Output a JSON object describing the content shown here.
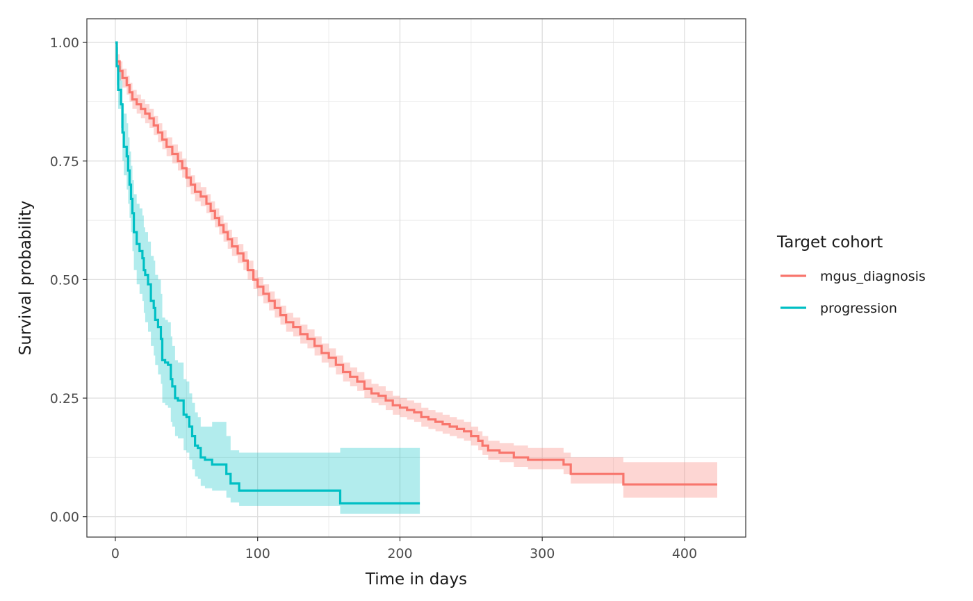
{
  "chart_data": {
    "type": "line",
    "subtype": "kaplan-meier survival curve with confidence bands",
    "xlabel": "Time in days",
    "ylabel": "Survival probability",
    "xlim": [
      -20,
      443
    ],
    "ylim": [
      -0.043,
      1.05
    ],
    "x_ticks": [
      0,
      100,
      200,
      300,
      400
    ],
    "x_tick_labels": [
      "0",
      "100",
      "200",
      "300",
      "400"
    ],
    "y_ticks": [
      0,
      0.25,
      0.5,
      0.75,
      1.0
    ],
    "y_tick_labels": [
      "0.00",
      "0.25",
      "0.50",
      "0.75",
      "1.00"
    ],
    "grid": true,
    "legend": {
      "title": "Target cohort",
      "placement": "right"
    },
    "series": [
      {
        "name": "mgus_diagnosis",
        "color": "#F8766D",
        "band_color": "#F8766D",
        "points": [
          [
            0,
            1.0
          ],
          [
            1,
            0.96
          ],
          [
            3,
            0.94
          ],
          [
            5,
            0.925
          ],
          [
            8,
            0.91
          ],
          [
            10,
            0.895
          ],
          [
            12,
            0.88
          ],
          [
            15,
            0.87
          ],
          [
            18,
            0.86
          ],
          [
            21,
            0.85
          ],
          [
            24,
            0.84
          ],
          [
            27,
            0.825
          ],
          [
            30,
            0.81
          ],
          [
            33,
            0.795
          ],
          [
            36,
            0.78
          ],
          [
            40,
            0.765
          ],
          [
            44,
            0.75
          ],
          [
            47,
            0.735
          ],
          [
            50,
            0.715
          ],
          [
            53,
            0.7
          ],
          [
            56,
            0.685
          ],
          [
            60,
            0.675
          ],
          [
            64,
            0.66
          ],
          [
            67,
            0.645
          ],
          [
            70,
            0.63
          ],
          [
            73,
            0.615
          ],
          [
            76,
            0.6
          ],
          [
            79,
            0.585
          ],
          [
            82,
            0.57
          ],
          [
            86,
            0.555
          ],
          [
            90,
            0.54
          ],
          [
            93,
            0.52
          ],
          [
            97,
            0.5
          ],
          [
            100,
            0.485
          ],
          [
            104,
            0.47
          ],
          [
            108,
            0.455
          ],
          [
            112,
            0.44
          ],
          [
            116,
            0.425
          ],
          [
            120,
            0.41
          ],
          [
            125,
            0.4
          ],
          [
            130,
            0.385
          ],
          [
            135,
            0.375
          ],
          [
            140,
            0.36
          ],
          [
            145,
            0.345
          ],
          [
            150,
            0.335
          ],
          [
            155,
            0.32
          ],
          [
            160,
            0.305
          ],
          [
            165,
            0.295
          ],
          [
            170,
            0.285
          ],
          [
            175,
            0.27
          ],
          [
            180,
            0.26
          ],
          [
            185,
            0.255
          ],
          [
            190,
            0.245
          ],
          [
            195,
            0.235
          ],
          [
            200,
            0.23
          ],
          [
            205,
            0.225
          ],
          [
            210,
            0.22
          ],
          [
            215,
            0.21
          ],
          [
            220,
            0.205
          ],
          [
            225,
            0.2
          ],
          [
            230,
            0.195
          ],
          [
            235,
            0.19
          ],
          [
            240,
            0.185
          ],
          [
            245,
            0.18
          ],
          [
            250,
            0.17
          ],
          [
            255,
            0.16
          ],
          [
            258,
            0.15
          ],
          [
            262,
            0.14
          ],
          [
            270,
            0.135
          ],
          [
            280,
            0.125
          ],
          [
            290,
            0.12
          ],
          [
            300,
            0.12
          ],
          [
            313,
            0.12
          ],
          [
            315,
            0.11
          ],
          [
            320,
            0.09
          ],
          [
            330,
            0.09
          ],
          [
            345,
            0.09
          ],
          [
            355,
            0.09
          ],
          [
            357,
            0.068
          ],
          [
            380,
            0.068
          ],
          [
            400,
            0.068
          ],
          [
            423,
            0.068
          ]
        ],
        "lower": [
          1.0,
          0.94,
          0.92,
          0.905,
          0.89,
          0.875,
          0.86,
          0.85,
          0.84,
          0.83,
          0.82,
          0.805,
          0.79,
          0.775,
          0.76,
          0.745,
          0.73,
          0.715,
          0.695,
          0.68,
          0.665,
          0.655,
          0.64,
          0.625,
          0.61,
          0.595,
          0.58,
          0.565,
          0.55,
          0.535,
          0.52,
          0.5,
          0.48,
          0.465,
          0.45,
          0.435,
          0.42,
          0.405,
          0.39,
          0.38,
          0.365,
          0.355,
          0.34,
          0.325,
          0.315,
          0.3,
          0.285,
          0.275,
          0.265,
          0.25,
          0.24,
          0.235,
          0.225,
          0.215,
          0.21,
          0.205,
          0.2,
          0.19,
          0.185,
          0.18,
          0.175,
          0.17,
          0.165,
          0.16,
          0.15,
          0.14,
          0.13,
          0.12,
          0.115,
          0.105,
          0.1,
          0.1,
          0.1,
          0.09,
          0.07,
          0.07,
          0.07,
          0.07,
          0.04,
          0.04,
          0.04,
          0.04
        ],
        "upper": [
          1.0,
          0.975,
          0.96,
          0.945,
          0.93,
          0.915,
          0.9,
          0.89,
          0.88,
          0.87,
          0.86,
          0.845,
          0.83,
          0.815,
          0.8,
          0.785,
          0.77,
          0.755,
          0.735,
          0.72,
          0.705,
          0.695,
          0.68,
          0.665,
          0.65,
          0.635,
          0.62,
          0.605,
          0.59,
          0.575,
          0.56,
          0.54,
          0.52,
          0.505,
          0.49,
          0.475,
          0.46,
          0.445,
          0.43,
          0.42,
          0.405,
          0.395,
          0.38,
          0.365,
          0.355,
          0.34,
          0.325,
          0.315,
          0.305,
          0.29,
          0.28,
          0.275,
          0.265,
          0.255,
          0.25,
          0.245,
          0.24,
          0.23,
          0.225,
          0.22,
          0.215,
          0.21,
          0.205,
          0.2,
          0.19,
          0.18,
          0.17,
          0.16,
          0.155,
          0.15,
          0.145,
          0.145,
          0.145,
          0.135,
          0.125,
          0.125,
          0.125,
          0.125,
          0.115,
          0.115,
          0.115,
          0.115
        ]
      },
      {
        "name": "progression",
        "color": "#00BFC4",
        "band_color": "#00BFC4",
        "points": [
          [
            0,
            1.0
          ],
          [
            1,
            0.95
          ],
          [
            2,
            0.9
          ],
          [
            4,
            0.87
          ],
          [
            5,
            0.81
          ],
          [
            6,
            0.78
          ],
          [
            8,
            0.76
          ],
          [
            9,
            0.73
          ],
          [
            10,
            0.7
          ],
          [
            11,
            0.67
          ],
          [
            12,
            0.64
          ],
          [
            13,
            0.6
          ],
          [
            15,
            0.575
          ],
          [
            17,
            0.56
          ],
          [
            19,
            0.545
          ],
          [
            20,
            0.52
          ],
          [
            21,
            0.51
          ],
          [
            23,
            0.49
          ],
          [
            25,
            0.455
          ],
          [
            27,
            0.44
          ],
          [
            28,
            0.415
          ],
          [
            30,
            0.4
          ],
          [
            32,
            0.375
          ],
          [
            33,
            0.33
          ],
          [
            35,
            0.325
          ],
          [
            37,
            0.32
          ],
          [
            39,
            0.29
          ],
          [
            40,
            0.275
          ],
          [
            42,
            0.25
          ],
          [
            44,
            0.245
          ],
          [
            47,
            0.245
          ],
          [
            48,
            0.215
          ],
          [
            50,
            0.21
          ],
          [
            52,
            0.19
          ],
          [
            54,
            0.17
          ],
          [
            56,
            0.15
          ],
          [
            58,
            0.145
          ],
          [
            60,
            0.125
          ],
          [
            63,
            0.12
          ],
          [
            67,
            0.12
          ],
          [
            68,
            0.11
          ],
          [
            72,
            0.11
          ],
          [
            77,
            0.11
          ],
          [
            78,
            0.09
          ],
          [
            81,
            0.07
          ],
          [
            84,
            0.07
          ],
          [
            86,
            0.07
          ],
          [
            87,
            0.055
          ],
          [
            100,
            0.055
          ],
          [
            120,
            0.055
          ],
          [
            140,
            0.055
          ],
          [
            157,
            0.055
          ],
          [
            158,
            0.028
          ],
          [
            180,
            0.028
          ],
          [
            200,
            0.028
          ],
          [
            214,
            0.028
          ]
        ],
        "lower": [
          1.0,
          0.91,
          0.86,
          0.82,
          0.75,
          0.72,
          0.69,
          0.66,
          0.63,
          0.6,
          0.56,
          0.52,
          0.49,
          0.47,
          0.455,
          0.43,
          0.41,
          0.39,
          0.36,
          0.34,
          0.32,
          0.3,
          0.28,
          0.24,
          0.235,
          0.23,
          0.2,
          0.19,
          0.17,
          0.165,
          0.165,
          0.14,
          0.135,
          0.12,
          0.1,
          0.085,
          0.08,
          0.065,
          0.06,
          0.06,
          0.055,
          0.055,
          0.055,
          0.04,
          0.03,
          0.03,
          0.03,
          0.023,
          0.023,
          0.023,
          0.023,
          0.023,
          0.006,
          0.006,
          0.006,
          0.006
        ],
        "upper": [
          1.0,
          0.99,
          0.95,
          0.92,
          0.87,
          0.85,
          0.83,
          0.8,
          0.77,
          0.74,
          0.71,
          0.68,
          0.66,
          0.65,
          0.635,
          0.61,
          0.6,
          0.58,
          0.55,
          0.54,
          0.51,
          0.5,
          0.47,
          0.42,
          0.415,
          0.41,
          0.38,
          0.36,
          0.33,
          0.325,
          0.325,
          0.29,
          0.285,
          0.26,
          0.24,
          0.22,
          0.21,
          0.19,
          0.19,
          0.19,
          0.2,
          0.2,
          0.2,
          0.17,
          0.14,
          0.14,
          0.14,
          0.135,
          0.135,
          0.135,
          0.135,
          0.135,
          0.145,
          0.145,
          0.145,
          0.145
        ]
      }
    ]
  }
}
